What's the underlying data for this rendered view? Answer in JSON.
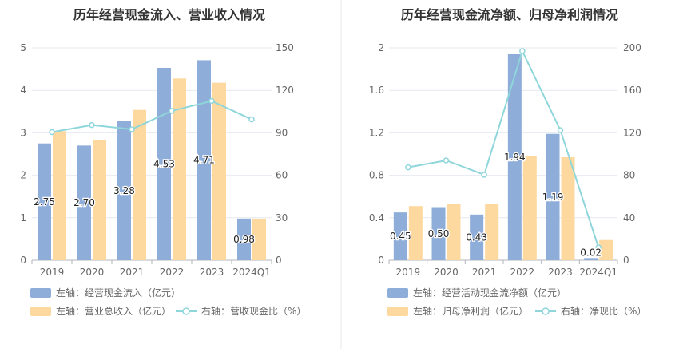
{
  "colors": {
    "bar_left": "#8eadd9",
    "bar_right": "#fdd9a0",
    "line": "#8fd6db",
    "axis_text": "#666666",
    "grid": "#e6e9f0",
    "divider": "#e8e8e8",
    "title": "#333333"
  },
  "chart_data": [
    {
      "type": "bar",
      "title": "历年经营现金流入、营业收入情况",
      "categories": [
        "2019",
        "2020",
        "2021",
        "2022",
        "2023",
        "2024Q1"
      ],
      "y_left": {
        "min": 0,
        "max": 5,
        "ticks": [
          "0",
          "1",
          "2",
          "3",
          "4",
          "5"
        ]
      },
      "y_right": {
        "min": 0,
        "max": 150,
        "ticks": [
          "0",
          "30",
          "60",
          "90",
          "120",
          "150"
        ]
      },
      "series": [
        {
          "name": "左轴：经营现金流入（亿元）",
          "type": "bar",
          "axis": "left",
          "values": [
            2.75,
            2.7,
            3.28,
            4.53,
            4.71,
            0.98
          ],
          "labels": [
            "2.75",
            "2.70",
            "3.28",
            "4.53",
            "4.71",
            "0.98"
          ]
        },
        {
          "name": "左轴：营业总收入（亿元）",
          "type": "bar",
          "axis": "left",
          "values": [
            3.04,
            2.83,
            3.54,
            4.28,
            4.18,
            0.98
          ]
        },
        {
          "name": "右轴：营收现金比（%）",
          "type": "line",
          "axis": "right",
          "values": [
            90.5,
            95.5,
            92.5,
            105.5,
            112.5,
            99.5
          ]
        }
      ],
      "legend": [
        {
          "label": "左轴：经营现金流入（亿元）",
          "kind": "bar_left"
        },
        {
          "label": "左轴：营业总收入（亿元）",
          "kind": "bar_right"
        },
        {
          "label": "右轴：营收现金比（%）",
          "kind": "line"
        }
      ],
      "legend_placement": "bottom-left"
    },
    {
      "type": "bar",
      "title": "历年经营现金流净额、归母净利润情况",
      "categories": [
        "2019",
        "2020",
        "2021",
        "2022",
        "2023",
        "2024Q1"
      ],
      "y_left": {
        "min": 0,
        "max": 2,
        "ticks": [
          "0",
          "0.4",
          "0.8",
          "1.2",
          "1.6",
          "2"
        ]
      },
      "y_right": {
        "min": 0,
        "max": 200,
        "ticks": [
          "0",
          "40",
          "80",
          "120",
          "160",
          "200"
        ]
      },
      "series": [
        {
          "name": "左轴：经营活动现金流净额（亿元）",
          "type": "bar",
          "axis": "left",
          "values": [
            0.45,
            0.5,
            0.43,
            1.94,
            1.19,
            0.02
          ],
          "labels": [
            "0.45",
            "0.50",
            "0.43",
            "1.94",
            "1.19",
            "0.02"
          ]
        },
        {
          "name": "左轴：归母净利润（亿元）",
          "type": "bar",
          "axis": "left",
          "values": [
            0.51,
            0.53,
            0.53,
            0.98,
            0.97,
            0.19
          ]
        },
        {
          "name": "右轴：净现比（%）",
          "type": "line",
          "axis": "right",
          "values": [
            87.5,
            94,
            80.5,
            197,
            122.5,
            12
          ]
        }
      ],
      "legend": [
        {
          "label": "左轴：经营活动现金流净额（亿元）",
          "kind": "bar_left"
        },
        {
          "label": "左轴：归母净利润（亿元）",
          "kind": "bar_right"
        },
        {
          "label": "右轴：净现比（%）",
          "kind": "line"
        }
      ],
      "legend_placement": "bottom-left"
    }
  ]
}
